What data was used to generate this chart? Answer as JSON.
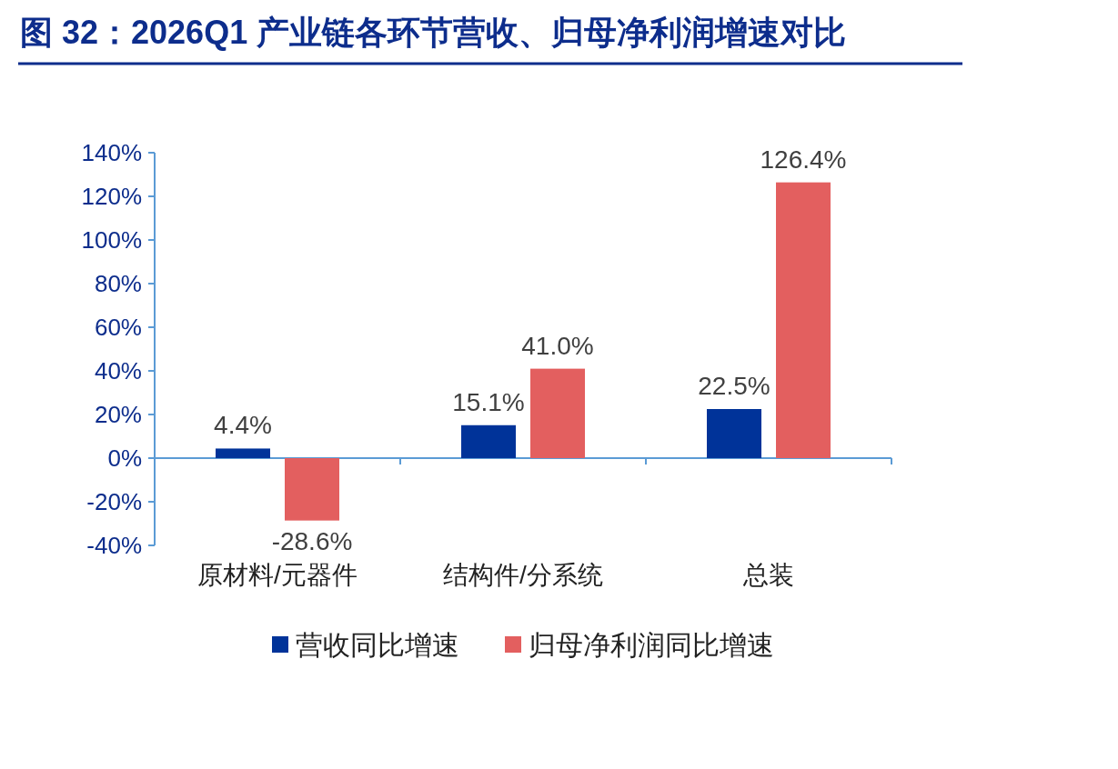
{
  "chart_data": {
    "type": "bar",
    "title": "图 32：2026Q1 产业链各环节营收、归母净利润增速对比",
    "categories": [
      "原材料/元器件",
      "结构件/分系统",
      "总装"
    ],
    "series": [
      {
        "name": "营收同比增速",
        "color": "#003399",
        "values": [
          4.4,
          15.1,
          22.5
        ],
        "value_labels": [
          "4.4%",
          "15.1%",
          "22.5%"
        ]
      },
      {
        "name": "归母净利润同比增速",
        "color": "#e35f5f",
        "values": [
          -28.6,
          41.0,
          126.4
        ],
        "value_labels": [
          "-28.6%",
          "41.0%",
          "126.4%"
        ]
      }
    ],
    "ylim": [
      -40,
      140
    ],
    "yticks": [
      {
        "value": -40,
        "label": "-40%"
      },
      {
        "value": -20,
        "label": "-20%"
      },
      {
        "value": 0,
        "label": "0%"
      },
      {
        "value": 20,
        "label": "20%"
      },
      {
        "value": 40,
        "label": "40%"
      },
      {
        "value": 60,
        "label": "60%"
      },
      {
        "value": 80,
        "label": "80%"
      },
      {
        "value": 100,
        "label": "100%"
      },
      {
        "value": 120,
        "label": "120%"
      },
      {
        "value": 140,
        "label": "140%"
      }
    ],
    "ref_lines": [
      {
        "axis": "y",
        "value": 0,
        "color": "#5b9bd5"
      }
    ],
    "legend": "bottom"
  }
}
